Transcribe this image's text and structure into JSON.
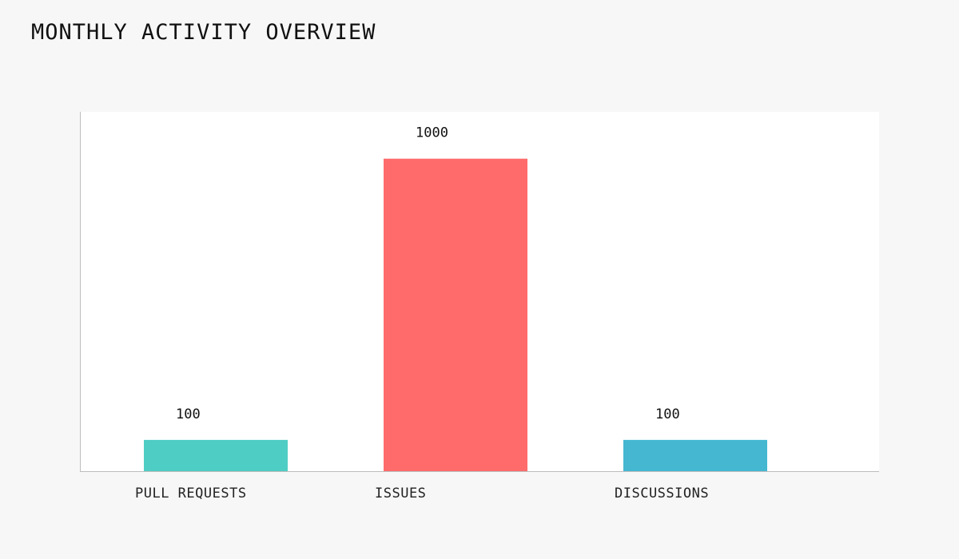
{
  "chart_data": {
    "type": "bar",
    "title": "MONTHLY ACTIVITY OVERVIEW",
    "xlabel": "",
    "ylabel": "",
    "categories": [
      "PULL REQUESTS",
      "ISSUES",
      "DISCUSSIONS"
    ],
    "values": [
      100,
      1000,
      100
    ],
    "value_labels": [
      "100",
      "1000",
      "100"
    ],
    "colors": [
      "#4ecdc4",
      "#ff6b6b",
      "#45b7d1"
    ],
    "ylim": [
      0,
      1150
    ],
    "grid": false,
    "legend": "none"
  }
}
